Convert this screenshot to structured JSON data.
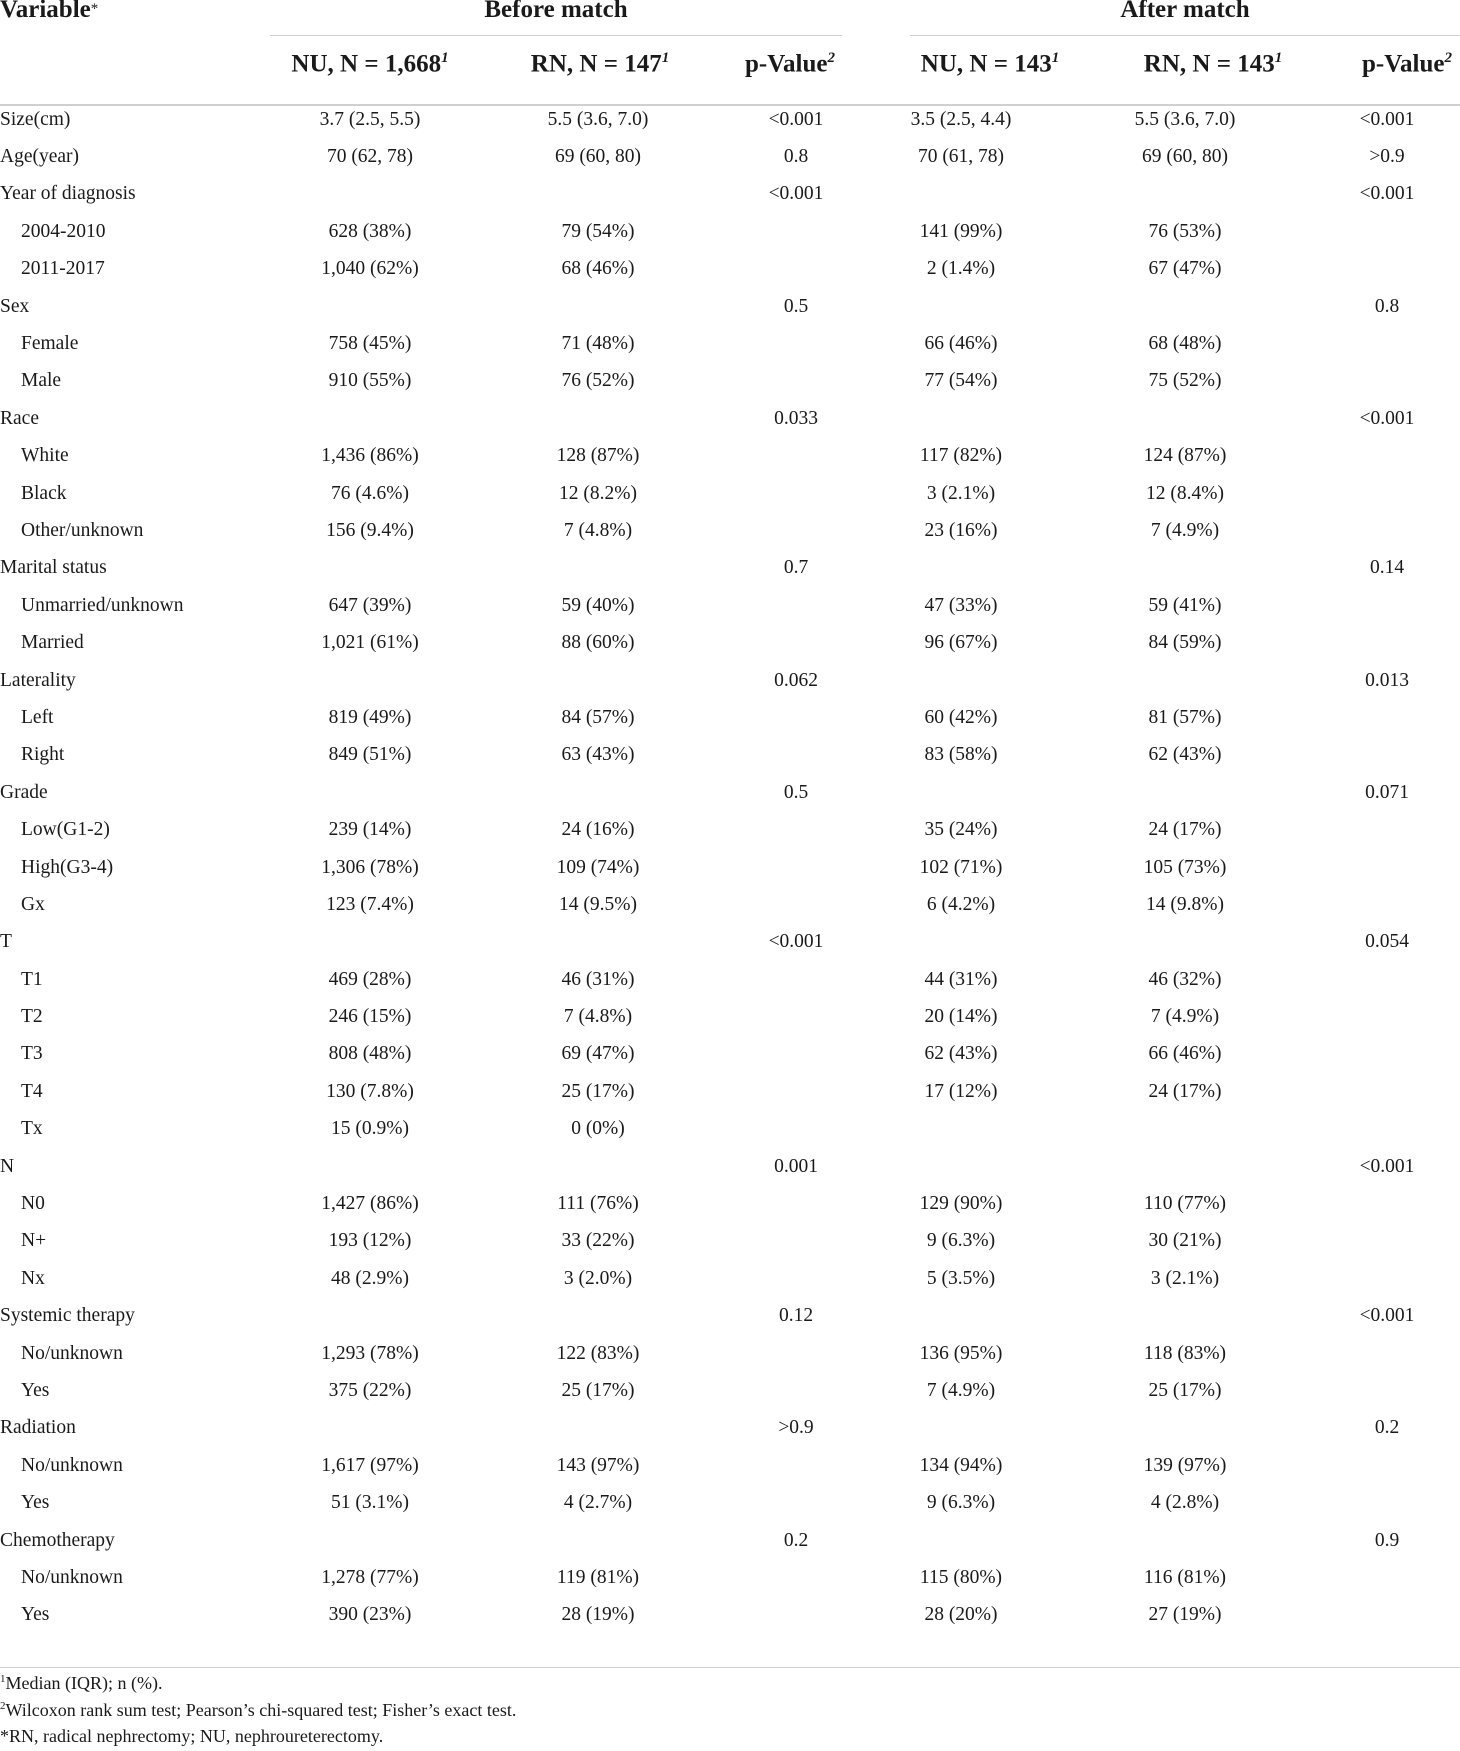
{
  "header": {
    "variable_label": "Variable",
    "variable_mark": "*",
    "group_before": "Before match",
    "group_after": "After match",
    "columns": [
      {
        "label": "NU, N = 1,668",
        "sup": "1"
      },
      {
        "label": "RN, N = 147",
        "sup": "1"
      },
      {
        "label": "p-Value",
        "sup": "2"
      },
      {
        "label": "NU, N = 143",
        "sup": "1"
      },
      {
        "label": "RN, N = 143",
        "sup": "1"
      },
      {
        "label": "p-Value",
        "sup": "2"
      }
    ]
  },
  "rows": [
    {
      "label": "Size(cm)",
      "indent": false,
      "values": [
        "3.7 (2.5, 5.5)",
        "5.5 (3.6, 7.0)",
        "<0.001",
        "3.5 (2.5, 4.4)",
        "5.5 (3.6, 7.0)",
        "<0.001"
      ]
    },
    {
      "label": "Age(year)",
      "indent": false,
      "values": [
        "70 (62, 78)",
        "69 (60, 80)",
        "0.8",
        "70 (61, 78)",
        "69 (60, 80)",
        ">0.9"
      ]
    },
    {
      "label": "Year of diagnosis",
      "indent": false,
      "values": [
        "",
        "",
        "<0.001",
        "",
        "",
        "<0.001"
      ]
    },
    {
      "label": "2004-2010",
      "indent": true,
      "values": [
        "628 (38%)",
        "79 (54%)",
        "",
        "141 (99%)",
        "76 (53%)",
        ""
      ]
    },
    {
      "label": "2011-2017",
      "indent": true,
      "values": [
        "1,040 (62%)",
        "68 (46%)",
        "",
        "2 (1.4%)",
        "67 (47%)",
        ""
      ]
    },
    {
      "label": "Sex",
      "indent": false,
      "values": [
        "",
        "",
        "0.5",
        "",
        "",
        "0.8"
      ]
    },
    {
      "label": "Female",
      "indent": true,
      "values": [
        "758 (45%)",
        "71 (48%)",
        "",
        "66 (46%)",
        "68 (48%)",
        ""
      ]
    },
    {
      "label": "Male",
      "indent": true,
      "values": [
        "910 (55%)",
        "76 (52%)",
        "",
        "77 (54%)",
        "75 (52%)",
        ""
      ]
    },
    {
      "label": "Race",
      "indent": false,
      "values": [
        "",
        "",
        "0.033",
        "",
        "",
        "<0.001"
      ]
    },
    {
      "label": "White",
      "indent": true,
      "values": [
        "1,436 (86%)",
        "128 (87%)",
        "",
        "117 (82%)",
        "124 (87%)",
        ""
      ]
    },
    {
      "label": "Black",
      "indent": true,
      "values": [
        "76 (4.6%)",
        "12 (8.2%)",
        "",
        "3 (2.1%)",
        "12 (8.4%)",
        ""
      ]
    },
    {
      "label": "Other/unknown",
      "indent": true,
      "values": [
        "156 (9.4%)",
        "7 (4.8%)",
        "",
        "23 (16%)",
        "7 (4.9%)",
        ""
      ]
    },
    {
      "label": "Marital status",
      "indent": false,
      "values": [
        "",
        "",
        "0.7",
        "",
        "",
        "0.14"
      ]
    },
    {
      "label": "Unmarried/unknown",
      "indent": true,
      "values": [
        "647 (39%)",
        "59 (40%)",
        "",
        "47 (33%)",
        "59 (41%)",
        ""
      ]
    },
    {
      "label": "Married",
      "indent": true,
      "values": [
        "1,021 (61%)",
        "88 (60%)",
        "",
        "96 (67%)",
        "84 (59%)",
        ""
      ]
    },
    {
      "label": "Laterality",
      "indent": false,
      "values": [
        "",
        "",
        "0.062",
        "",
        "",
        "0.013"
      ]
    },
    {
      "label": "Left",
      "indent": true,
      "values": [
        "819 (49%)",
        "84 (57%)",
        "",
        "60 (42%)",
        "81 (57%)",
        ""
      ]
    },
    {
      "label": "Right",
      "indent": true,
      "values": [
        "849 (51%)",
        "63 (43%)",
        "",
        "83 (58%)",
        "62 (43%)",
        ""
      ]
    },
    {
      "label": "Grade",
      "indent": false,
      "values": [
        "",
        "",
        "0.5",
        "",
        "",
        "0.071"
      ]
    },
    {
      "label": "Low(G1-2)",
      "indent": true,
      "values": [
        "239 (14%)",
        "24 (16%)",
        "",
        "35 (24%)",
        "24 (17%)",
        ""
      ]
    },
    {
      "label": "High(G3-4)",
      "indent": true,
      "values": [
        "1,306 (78%)",
        "109 (74%)",
        "",
        "102 (71%)",
        "105 (73%)",
        ""
      ]
    },
    {
      "label": "Gx",
      "indent": true,
      "values": [
        "123 (7.4%)",
        "14 (9.5%)",
        "",
        "6 (4.2%)",
        "14 (9.8%)",
        ""
      ]
    },
    {
      "label": "T",
      "indent": false,
      "values": [
        "",
        "",
        "<0.001",
        "",
        "",
        "0.054"
      ]
    },
    {
      "label": "T1",
      "indent": true,
      "values": [
        "469 (28%)",
        "46 (31%)",
        "",
        "44 (31%)",
        "46 (32%)",
        ""
      ]
    },
    {
      "label": "T2",
      "indent": true,
      "values": [
        "246 (15%)",
        "7 (4.8%)",
        "",
        "20 (14%)",
        "7 (4.9%)",
        ""
      ]
    },
    {
      "label": "T3",
      "indent": true,
      "values": [
        "808 (48%)",
        "69 (47%)",
        "",
        "62 (43%)",
        "66 (46%)",
        ""
      ]
    },
    {
      "label": "T4",
      "indent": true,
      "values": [
        "130 (7.8%)",
        "25 (17%)",
        "",
        "17 (12%)",
        "24 (17%)",
        ""
      ]
    },
    {
      "label": "Tx",
      "indent": true,
      "values": [
        "15 (0.9%)",
        "0 (0%)",
        "",
        "",
        "",
        ""
      ]
    },
    {
      "label": "N",
      "indent": false,
      "values": [
        "",
        "",
        "0.001",
        "",
        "",
        "<0.001"
      ]
    },
    {
      "label": "N0",
      "indent": true,
      "values": [
        "1,427 (86%)",
        "111 (76%)",
        "",
        "129 (90%)",
        "110 (77%)",
        ""
      ]
    },
    {
      "label": "N+",
      "indent": true,
      "values": [
        "193 (12%)",
        "33 (22%)",
        "",
        "9 (6.3%)",
        "30 (21%)",
        ""
      ]
    },
    {
      "label": "Nx",
      "indent": true,
      "values": [
        "48 (2.9%)",
        "3 (2.0%)",
        "",
        "5 (3.5%)",
        "3 (2.1%)",
        ""
      ]
    },
    {
      "label": "Systemic therapy",
      "indent": false,
      "values": [
        "",
        "",
        "0.12",
        "",
        "",
        "<0.001"
      ]
    },
    {
      "label": "No/unknown",
      "indent": true,
      "values": [
        "1,293 (78%)",
        "122 (83%)",
        "",
        "136 (95%)",
        "118 (83%)",
        ""
      ]
    },
    {
      "label": "Yes",
      "indent": true,
      "values": [
        "375 (22%)",
        "25 (17%)",
        "",
        "7 (4.9%)",
        "25 (17%)",
        ""
      ]
    },
    {
      "label": "Radiation",
      "indent": false,
      "values": [
        "",
        "",
        ">0.9",
        "",
        "",
        "0.2"
      ]
    },
    {
      "label": "No/unknown",
      "indent": true,
      "values": [
        "1,617 (97%)",
        "143 (97%)",
        "",
        "134 (94%)",
        "139 (97%)",
        ""
      ]
    },
    {
      "label": "Yes",
      "indent": true,
      "values": [
        "51 (3.1%)",
        "4 (2.7%)",
        "",
        "9 (6.3%)",
        "4 (2.8%)",
        ""
      ]
    },
    {
      "label": "Chemotherapy",
      "indent": false,
      "values": [
        "",
        "",
        "0.2",
        "",
        "",
        "0.9"
      ]
    },
    {
      "label": "No/unknown",
      "indent": true,
      "values": [
        "1,278 (77%)",
        "119 (81%)",
        "",
        "115 (80%)",
        "116 (81%)",
        ""
      ]
    },
    {
      "label": "Yes",
      "indent": true,
      "values": [
        "390 (23%)",
        "28 (19%)",
        "",
        "28 (20%)",
        "27 (19%)",
        ""
      ]
    }
  ],
  "footnotes": [
    {
      "mark": "1",
      "text": "Median (IQR); n (%)."
    },
    {
      "mark": "2",
      "text": "Wilcoxon rank sum test; Pearson’s chi-squared test; Fisher’s exact test."
    },
    {
      "mark": "",
      "text": "*RN, radical nephrectomy; NU, nephroureterectomy."
    }
  ]
}
